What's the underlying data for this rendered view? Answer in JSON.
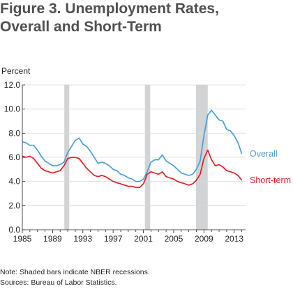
{
  "figure": {
    "title_line1": "Figure 3. Unemployment Rates,",
    "title_line2": "Overall and Short-Term"
  },
  "notes": {
    "note": "Note: Shaded bars indicate NBER recessions.",
    "source": "Sources: Bureau of Labor Statistics."
  },
  "chart_data": {
    "type": "line",
    "title": "Figure 3. Unemployment Rates, Overall and Short-Term",
    "xlabel": "",
    "ylabel": "Percent",
    "xlim": [
      1985,
      2014.5
    ],
    "ylim": [
      0,
      12
    ],
    "yticks": [
      0.0,
      2.0,
      4.0,
      6.0,
      8.0,
      10.0,
      12.0
    ],
    "ytick_labels": [
      "0.0",
      "2.0",
      "4.0",
      "6.0",
      "8.0",
      "10.0",
      "12.0"
    ],
    "xticks": [
      1985,
      1989,
      1993,
      1997,
      2001,
      2005,
      2009,
      2013
    ],
    "xtick_labels": [
      "1985",
      "1989",
      "1993",
      "1997",
      "2001",
      "2005",
      "2009",
      "2013"
    ],
    "grid": "horizontal",
    "legend": "direct labels at right end of lines",
    "recessions": [
      [
        1990.55,
        1991.2
      ],
      [
        2001.2,
        2001.9
      ],
      [
        2007.95,
        2009.5
      ]
    ],
    "recession_color": "#d1d3d4",
    "series": [
      {
        "name": "Overall",
        "color": "#4a9fd5",
        "x": [
          1985.0,
          1985.5,
          1986.0,
          1986.5,
          1987.0,
          1987.5,
          1988.0,
          1988.5,
          1989.0,
          1989.5,
          1990.0,
          1990.5,
          1991.0,
          1991.5,
          1992.0,
          1992.5,
          1993.0,
          1993.5,
          1994.0,
          1994.5,
          1995.0,
          1995.5,
          1996.0,
          1996.5,
          1997.0,
          1997.5,
          1998.0,
          1998.5,
          1999.0,
          1999.5,
          2000.0,
          2000.5,
          2001.0,
          2001.5,
          2002.0,
          2002.5,
          2003.0,
          2003.5,
          2004.0,
          2004.5,
          2005.0,
          2005.5,
          2006.0,
          2006.5,
          2007.0,
          2007.5,
          2008.0,
          2008.5,
          2009.0,
          2009.5,
          2010.0,
          2010.5,
          2011.0,
          2011.5,
          2012.0,
          2012.5,
          2013.0,
          2013.5,
          2014.0
        ],
        "values": [
          7.3,
          7.2,
          7.0,
          7.0,
          6.6,
          6.1,
          5.7,
          5.5,
          5.3,
          5.3,
          5.4,
          5.6,
          6.4,
          6.9,
          7.4,
          7.6,
          7.1,
          6.9,
          6.5,
          6.0,
          5.5,
          5.6,
          5.5,
          5.3,
          5.0,
          4.9,
          4.6,
          4.5,
          4.3,
          4.2,
          4.0,
          4.0,
          4.2,
          4.8,
          5.6,
          5.8,
          5.8,
          6.2,
          5.7,
          5.5,
          5.3,
          5.0,
          4.7,
          4.6,
          4.5,
          4.6,
          5.0,
          5.7,
          7.8,
          9.5,
          9.9,
          9.5,
          9.1,
          9.0,
          8.3,
          8.2,
          7.8,
          7.2,
          6.3
        ]
      },
      {
        "name": "Short-term",
        "color": "#e02026",
        "x": [
          1985.0,
          1985.5,
          1986.0,
          1986.5,
          1987.0,
          1987.5,
          1988.0,
          1988.5,
          1989.0,
          1989.5,
          1990.0,
          1990.5,
          1991.0,
          1991.5,
          1992.0,
          1992.5,
          1993.0,
          1993.5,
          1994.0,
          1994.5,
          1995.0,
          1995.5,
          1996.0,
          1996.5,
          1997.0,
          1997.5,
          1998.0,
          1998.5,
          1999.0,
          1999.5,
          2000.0,
          2000.5,
          2001.0,
          2001.5,
          2002.0,
          2002.5,
          2003.0,
          2003.5,
          2004.0,
          2004.5,
          2005.0,
          2005.5,
          2006.0,
          2006.5,
          2007.0,
          2007.5,
          2008.0,
          2008.5,
          2009.0,
          2009.5,
          2010.0,
          2010.5,
          2011.0,
          2011.5,
          2012.0,
          2012.5,
          2013.0,
          2013.5,
          2014.0
        ],
        "values": [
          6.1,
          6.0,
          6.1,
          5.9,
          5.5,
          5.1,
          4.9,
          4.8,
          4.7,
          4.8,
          4.9,
          5.3,
          5.9,
          6.0,
          6.0,
          5.9,
          5.5,
          5.1,
          4.8,
          4.5,
          4.4,
          4.5,
          4.4,
          4.2,
          4.0,
          3.9,
          3.8,
          3.7,
          3.6,
          3.6,
          3.5,
          3.5,
          3.8,
          4.6,
          4.8,
          4.7,
          4.6,
          4.8,
          4.4,
          4.3,
          4.2,
          4.0,
          3.9,
          3.8,
          3.7,
          3.8,
          4.1,
          4.6,
          5.9,
          6.6,
          5.8,
          5.3,
          5.4,
          5.2,
          4.9,
          4.8,
          4.7,
          4.5,
          4.1
        ]
      }
    ]
  }
}
